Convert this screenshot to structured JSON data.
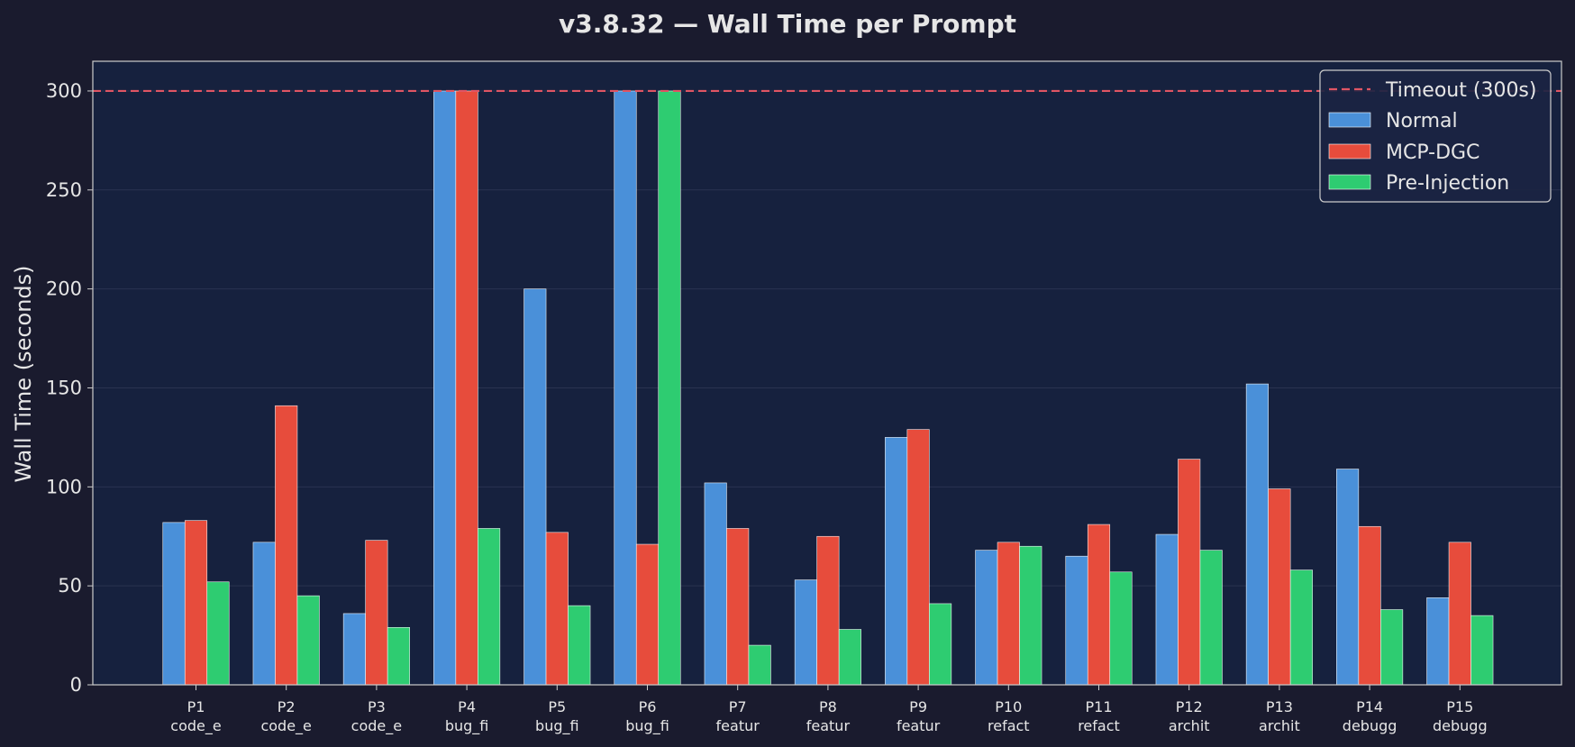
{
  "chart_data": {
    "type": "bar",
    "title": "v3.8.32 — Wall Time per Prompt",
    "xlabel": "",
    "ylabel": "Wall Time (seconds)",
    "ylim": [
      0,
      315
    ],
    "yticks": [
      0,
      50,
      100,
      150,
      200,
      250,
      300
    ],
    "grid": true,
    "legend_position": "top-right",
    "categories": [
      {
        "id": "P1",
        "label": "code_e"
      },
      {
        "id": "P2",
        "label": "code_e"
      },
      {
        "id": "P3",
        "label": "code_e"
      },
      {
        "id": "P4",
        "label": "bug_fi"
      },
      {
        "id": "P5",
        "label": "bug_fi"
      },
      {
        "id": "P6",
        "label": "bug_fi"
      },
      {
        "id": "P7",
        "label": "featur"
      },
      {
        "id": "P8",
        "label": "featur"
      },
      {
        "id": "P9",
        "label": "featur"
      },
      {
        "id": "P10",
        "label": "refact"
      },
      {
        "id": "P11",
        "label": "refact"
      },
      {
        "id": "P12",
        "label": "archit"
      },
      {
        "id": "P13",
        "label": "archit"
      },
      {
        "id": "P14",
        "label": "debugg"
      },
      {
        "id": "P15",
        "label": "debugg"
      }
    ],
    "series": [
      {
        "name": "Normal",
        "color": "#4a90d9",
        "values": [
          82,
          72,
          36,
          300,
          200,
          300,
          102,
          53,
          125,
          68,
          65,
          76,
          152,
          109,
          44
        ]
      },
      {
        "name": "MCP-DGC",
        "color": "#e74c3c",
        "values": [
          83,
          141,
          73,
          300,
          77,
          71,
          79,
          75,
          129,
          72,
          81,
          114,
          99,
          80,
          72
        ]
      },
      {
        "name": "Pre-Injection",
        "color": "#2ecc71",
        "values": [
          52,
          45,
          29,
          79,
          40,
          300,
          20,
          28,
          41,
          70,
          57,
          68,
          58,
          38,
          35
        ]
      }
    ],
    "reference_line": {
      "value": 300,
      "label": "Timeout (300s)",
      "color": "#e05564",
      "style": "dashed"
    },
    "colors": {
      "background": "#1a1b2e",
      "plot_background": "#16213e",
      "text": "#e6e6e6",
      "axis": "#cccccc"
    }
  }
}
